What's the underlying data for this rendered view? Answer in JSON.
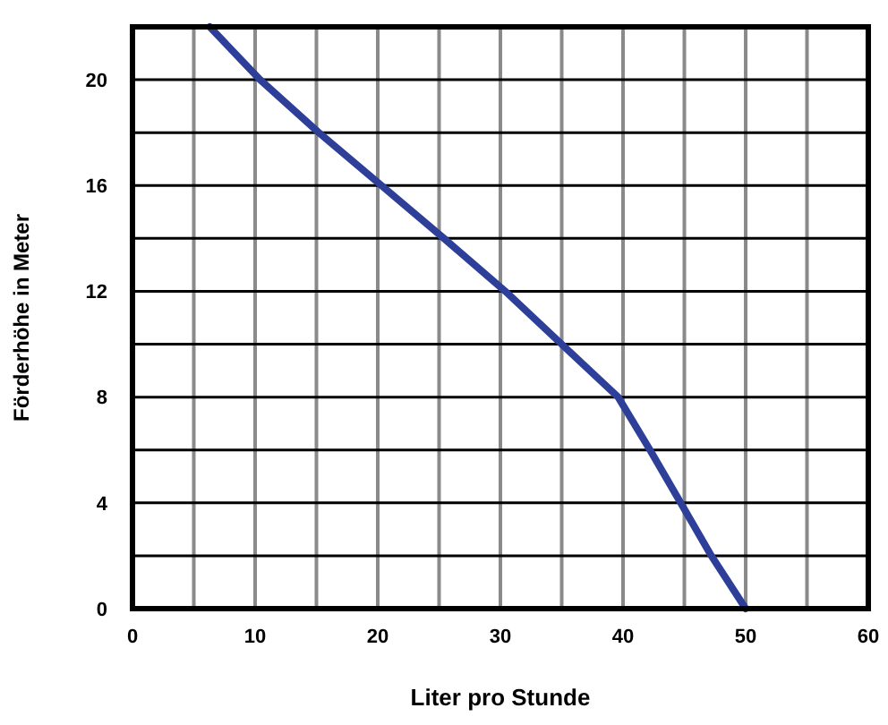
{
  "chart_data": {
    "type": "line",
    "xlabel": "Liter pro Stunde",
    "ylabel": "Förderhöhe in Meter",
    "x": [
      6.3,
      10.4,
      15.2,
      20.3,
      25.4,
      30.4,
      35,
      39.6,
      42.2,
      44.7,
      47.2,
      50
    ],
    "series": [
      {
        "color": "#2e3f9a",
        "values": [
          22,
          20,
          18,
          16,
          14,
          12,
          10,
          8,
          6,
          4,
          2,
          0
        ]
      }
    ],
    "xlim": [
      0,
      60
    ],
    "ylim": [
      0,
      22
    ],
    "xticks": [
      0,
      {
        "value": 5,
        "label": null
      },
      10,
      {
        "value": 15,
        "label": null
      },
      20,
      {
        "value": 25,
        "label": null
      },
      30,
      {
        "value": 35,
        "label": null
      },
      40,
      {
        "value": 45,
        "label": null
      },
      50,
      {
        "value": 55,
        "label": null
      },
      60
    ],
    "yticks": [
      0,
      {
        "value": 2,
        "label": null
      },
      4,
      {
        "value": 6,
        "label": null
      },
      8,
      {
        "value": 10,
        "label": null
      },
      12,
      {
        "value": 14,
        "label": null
      },
      16,
      {
        "value": 18,
        "label": null
      },
      20
    ],
    "grid": true,
    "marker": "none",
    "line_style": "solid"
  }
}
